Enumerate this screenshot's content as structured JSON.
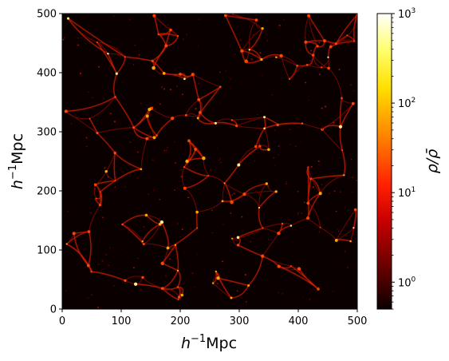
{
  "chart_data": {
    "type": "heatmap",
    "title": "",
    "xlabel_base": "h",
    "xlabel_sup": "−1",
    "xlabel_unit": "Mpc",
    "ylabel_base": "h",
    "ylabel_sup": "−1",
    "ylabel_unit": "Mpc",
    "xlim": [
      0,
      500
    ],
    "ylim": [
      0,
      500
    ],
    "xticks": [
      {
        "value": 0,
        "label": "0"
      },
      {
        "value": 100,
        "label": "100"
      },
      {
        "value": 200,
        "label": "200"
      },
      {
        "value": 300,
        "label": "300"
      },
      {
        "value": 400,
        "label": "400"
      },
      {
        "value": 500,
        "label": "500"
      }
    ],
    "yticks": [
      {
        "value": 0,
        "label": "0"
      },
      {
        "value": 100,
        "label": "100"
      },
      {
        "value": 200,
        "label": "200"
      },
      {
        "value": 300,
        "label": "300"
      },
      {
        "value": 400,
        "label": "400"
      },
      {
        "value": 500,
        "label": "500"
      }
    ],
    "colormap": "hot",
    "colorbar": {
      "label": "ρ/ρ̄",
      "scale": "log",
      "range": [
        0.5,
        1000
      ],
      "ticks": [
        {
          "value": 1,
          "base": "10",
          "exp": "0"
        },
        {
          "value": 10,
          "base": "10",
          "exp": "1"
        },
        {
          "value": 100,
          "base": "10",
          "exp": "2"
        },
        {
          "value": 1000,
          "base": "10",
          "exp": "3"
        }
      ]
    },
    "background_color": "#0a0000",
    "grid": false
  }
}
